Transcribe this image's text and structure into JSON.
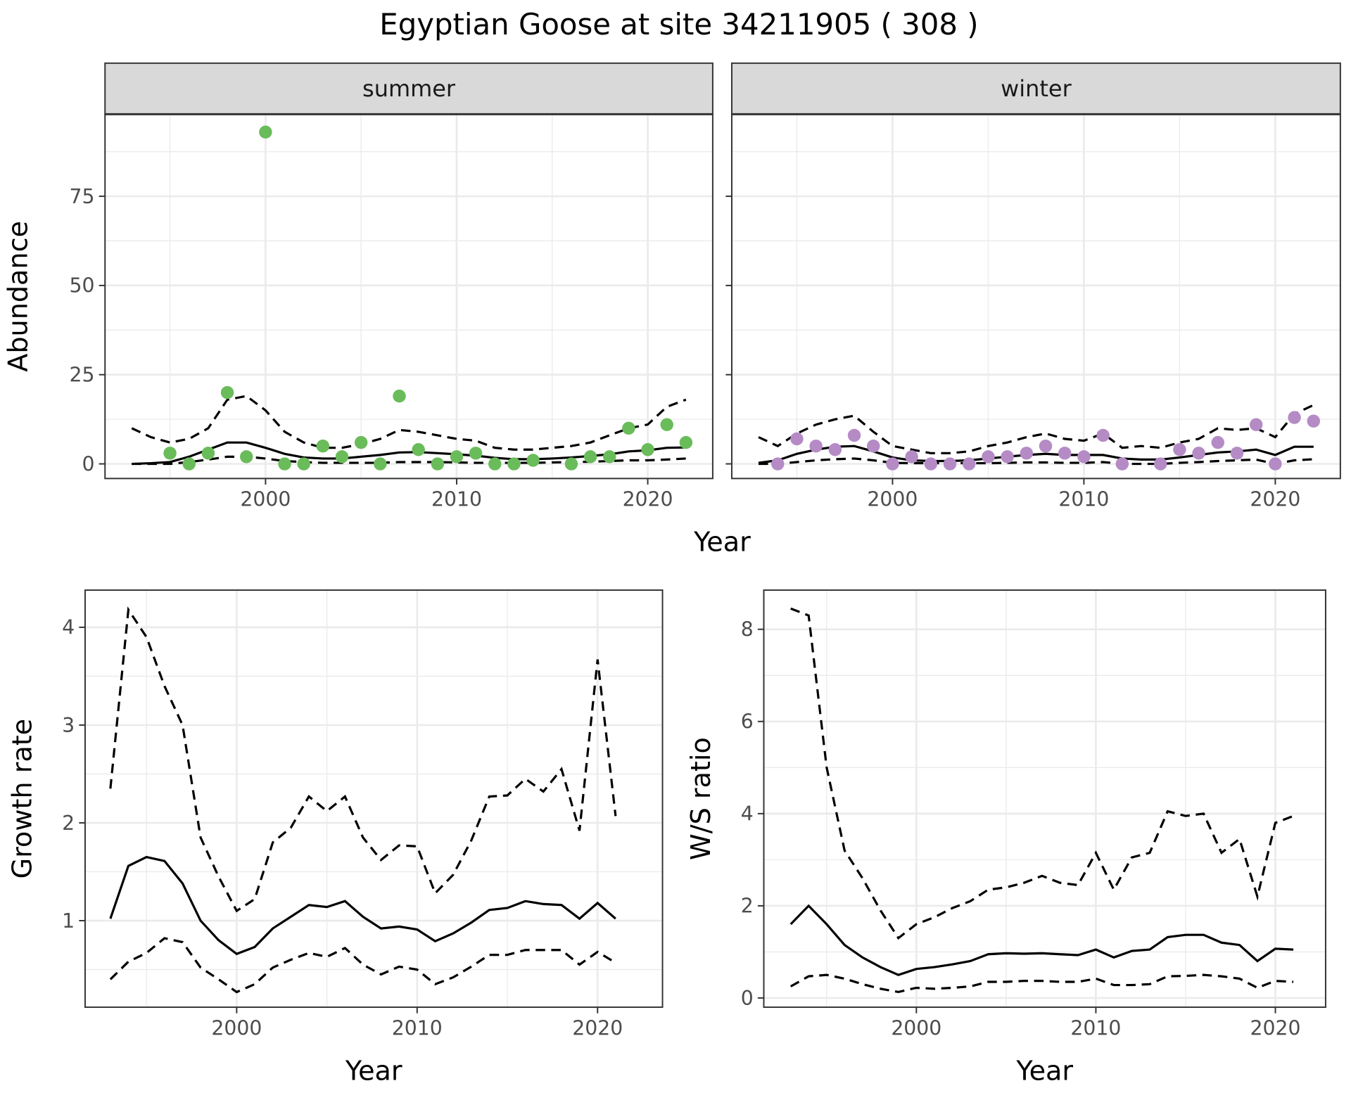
{
  "title": "Egyptian Goose at site 34211905 ( 308 )",
  "colors": {
    "summer_points": "#6abc5a",
    "winter_points": "#b58bc6",
    "line": "#000000",
    "strip_bg": "#d9d9d9",
    "grid": "#ebebeb"
  },
  "chart_data": [
    {
      "type": "scatter",
      "facet": "summer",
      "xlabel": "Year",
      "ylabel": "Abundance",
      "xlim": [
        1991.6,
        2023.4
      ],
      "ylim": [
        -4.1,
        98
      ],
      "xticks": [
        2000,
        2010,
        2020
      ],
      "yticks": [
        0,
        25,
        50,
        75
      ],
      "grid": true,
      "points": {
        "x": [
          1995,
          1996,
          1997,
          1998,
          1999,
          2000,
          2001,
          2002,
          2003,
          2004,
          2005,
          2006,
          2007,
          2008,
          2009,
          2010,
          2011,
          2012,
          2013,
          2014,
          2016,
          2017,
          2018,
          2019,
          2020,
          2021,
          2022
        ],
        "y": [
          3,
          0,
          3,
          20,
          2,
          93,
          0,
          0,
          5,
          2,
          6,
          0,
          19,
          4,
          0,
          2,
          3,
          0,
          0,
          1,
          0,
          2,
          2,
          10,
          4,
          11,
          6
        ]
      },
      "fit_x": [
        1993,
        1994,
        1995,
        1996,
        1997,
        1998,
        1999,
        2000,
        2001,
        2002,
        2003,
        2004,
        2005,
        2006,
        2007,
        2008,
        2009,
        2010,
        2011,
        2012,
        2013,
        2014,
        2015,
        2016,
        2017,
        2018,
        2019,
        2020,
        2021,
        2022
      ],
      "fit": [
        0,
        0.2,
        0.5,
        2,
        4,
        6,
        6,
        4.5,
        2.8,
        1.8,
        1.5,
        1.5,
        2,
        2.5,
        3.2,
        3.3,
        3,
        2.7,
        2.3,
        1.7,
        1.3,
        1.3,
        1.5,
        1.8,
        2.2,
        2.7,
        3.5,
        3.8,
        4.5,
        4.6
      ],
      "upper": [
        10,
        7.5,
        6,
        7,
        10,
        18,
        19,
        15,
        9,
        6,
        4.5,
        4.5,
        5.5,
        7,
        9.5,
        9,
        8,
        7,
        6.5,
        4.5,
        4,
        4,
        4.5,
        5,
        6,
        8,
        10,
        11,
        16,
        18
      ],
      "lower": [
        0,
        0,
        0,
        0.5,
        1.2,
        2,
        2,
        1.5,
        0.8,
        0.5,
        0.3,
        0.3,
        0.3,
        0.3,
        0.5,
        0.5,
        0.5,
        0.4,
        0.3,
        0.3,
        0.3,
        0.3,
        0.4,
        0.5,
        0.6,
        0.8,
        1,
        1,
        1.2,
        1.5
      ]
    },
    {
      "type": "scatter",
      "facet": "winter",
      "xlabel": "Year",
      "ylabel": "Abundance",
      "xlim": [
        1991.6,
        2023.4
      ],
      "ylim": [
        -4.1,
        98
      ],
      "xticks": [
        2000,
        2010,
        2020
      ],
      "yticks": [
        0,
        25,
        50,
        75
      ],
      "grid": true,
      "points": {
        "x": [
          1994,
          1995,
          1996,
          1997,
          1998,
          1999,
          2000,
          2001,
          2002,
          2003,
          2004,
          2005,
          2006,
          2007,
          2008,
          2009,
          2010,
          2011,
          2012,
          2014,
          2015,
          2016,
          2017,
          2018,
          2019,
          2020,
          2021,
          2022
        ],
        "y": [
          0,
          7,
          5,
          4,
          8,
          5,
          0,
          2,
          0,
          0,
          0,
          2,
          2,
          3,
          5,
          3,
          2,
          8,
          0,
          0,
          4,
          3,
          6,
          3,
          11,
          0,
          13,
          12
        ]
      },
      "fit_x": [
        1993,
        1994,
        1995,
        1996,
        1997,
        1998,
        1999,
        2000,
        2001,
        2002,
        2003,
        2004,
        2005,
        2006,
        2007,
        2008,
        2009,
        2010,
        2011,
        2012,
        2013,
        2014,
        2015,
        2016,
        2017,
        2018,
        2019,
        2020,
        2021,
        2022
      ],
      "fit": [
        0.3,
        1,
        2.8,
        4,
        4.8,
        5,
        3.5,
        1.8,
        1,
        0.8,
        0.8,
        1,
        1.5,
        2,
        2.5,
        2.8,
        2.5,
        2.5,
        2.5,
        1.5,
        1.2,
        1.2,
        1.8,
        2.5,
        3.2,
        3.5,
        4,
        2.5,
        4.8,
        4.8
      ],
      "upper": [
        7.5,
        5,
        8.5,
        11,
        12.5,
        13.5,
        9,
        5,
        4,
        3,
        3,
        3.5,
        5,
        6,
        7.5,
        8.5,
        7,
        6.5,
        8.5,
        4.5,
        5,
        4.5,
        6,
        7,
        10,
        9.5,
        10,
        7.5,
        14,
        16.5
      ],
      "lower": [
        0,
        0,
        0.5,
        1,
        1.3,
        1.5,
        1,
        0.3,
        0.2,
        0.2,
        0.2,
        0.2,
        0.2,
        0.3,
        0.4,
        0.4,
        0.3,
        0.3,
        0.5,
        0,
        0,
        0,
        0.3,
        0.5,
        0.8,
        1,
        1.2,
        0,
        1,
        1.3
      ]
    },
    {
      "type": "line",
      "xlabel": "Year",
      "ylabel": "Growth rate",
      "xlim": [
        1991.6,
        2023.6
      ],
      "ylim": [
        0.115,
        4.38
      ],
      "xticks": [
        2000,
        2010,
        2020
      ],
      "yticks": [
        1,
        2,
        3,
        4
      ],
      "grid": true,
      "x": [
        1993,
        1994,
        1995,
        1996,
        1997,
        1998,
        1999,
        2000,
        2001,
        2002,
        2003,
        2004,
        2005,
        2006,
        2007,
        2008,
        2009,
        2010,
        2011,
        2012,
        2013,
        2014,
        2015,
        2016,
        2017,
        2018,
        2019,
        2020,
        2021
      ],
      "fit": [
        1.02,
        1.56,
        1.65,
        1.61,
        1.38,
        1.0,
        0.8,
        0.66,
        0.73,
        0.92,
        1.04,
        1.16,
        1.14,
        1.2,
        1.04,
        0.92,
        0.94,
        0.91,
        0.79,
        0.87,
        0.98,
        1.11,
        1.13,
        1.2,
        1.17,
        1.16,
        1.02,
        1.18,
        1.02
      ],
      "upper": [
        2.35,
        4.18,
        3.9,
        3.4,
        3.0,
        1.85,
        1.45,
        1.1,
        1.22,
        1.8,
        1.95,
        2.27,
        2.12,
        2.27,
        1.85,
        1.62,
        1.77,
        1.76,
        1.28,
        1.47,
        1.82,
        2.27,
        2.28,
        2.45,
        2.32,
        2.55,
        1.92,
        3.67,
        2.07
      ],
      "lower": [
        0.4,
        0.58,
        0.67,
        0.82,
        0.78,
        0.52,
        0.4,
        0.27,
        0.35,
        0.52,
        0.6,
        0.67,
        0.63,
        0.72,
        0.55,
        0.45,
        0.53,
        0.5,
        0.35,
        0.42,
        0.53,
        0.65,
        0.65,
        0.7,
        0.7,
        0.7,
        0.55,
        0.68,
        0.57
      ]
    },
    {
      "type": "line",
      "xlabel": "Year",
      "ylabel": "W/S ratio",
      "xlim": [
        1991.5,
        2022.8
      ],
      "ylim": [
        -0.2,
        8.85
      ],
      "xticks": [
        2000,
        2010,
        2020
      ],
      "yticks": [
        0,
        2,
        4,
        6,
        8
      ],
      "grid": true,
      "x": [
        1993,
        1994,
        1995,
        1996,
        1997,
        1998,
        1999,
        2000,
        2001,
        2002,
        2003,
        2004,
        2005,
        2006,
        2007,
        2008,
        2009,
        2010,
        2011,
        2012,
        2013,
        2014,
        2015,
        2016,
        2017,
        2018,
        2019,
        2020,
        2021
      ],
      "fit": [
        1.6,
        2.0,
        1.6,
        1.15,
        0.88,
        0.67,
        0.5,
        0.63,
        0.67,
        0.73,
        0.8,
        0.95,
        0.97,
        0.96,
        0.97,
        0.95,
        0.93,
        1.05,
        0.88,
        1.02,
        1.05,
        1.32,
        1.37,
        1.37,
        1.2,
        1.15,
        0.8,
        1.07,
        1.05
      ],
      "upper": [
        8.45,
        8.3,
        5.0,
        3.2,
        2.6,
        1.9,
        1.3,
        1.6,
        1.75,
        1.95,
        2.1,
        2.35,
        2.4,
        2.5,
        2.65,
        2.5,
        2.45,
        3.15,
        2.35,
        3.05,
        3.15,
        4.05,
        3.95,
        4.0,
        3.15,
        3.45,
        2.2,
        3.8,
        3.95
      ],
      "lower": [
        0.25,
        0.47,
        0.5,
        0.42,
        0.3,
        0.2,
        0.13,
        0.22,
        0.2,
        0.22,
        0.25,
        0.35,
        0.35,
        0.37,
        0.37,
        0.35,
        0.35,
        0.42,
        0.28,
        0.28,
        0.3,
        0.47,
        0.48,
        0.5,
        0.47,
        0.42,
        0.22,
        0.37,
        0.35
      ]
    }
  ]
}
